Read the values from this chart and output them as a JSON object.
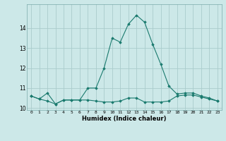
{
  "x": [
    0,
    1,
    2,
    3,
    4,
    5,
    6,
    7,
    8,
    9,
    10,
    11,
    12,
    13,
    14,
    15,
    16,
    17,
    18,
    19,
    20,
    21,
    22,
    23
  ],
  "line1": [
    10.6,
    10.45,
    10.35,
    10.2,
    10.4,
    10.4,
    10.4,
    10.4,
    10.35,
    10.3,
    10.3,
    10.35,
    10.5,
    10.5,
    10.3,
    10.3,
    10.3,
    10.35,
    10.6,
    10.65,
    10.65,
    10.55,
    10.45,
    10.35
  ],
  "line2": [
    10.6,
    10.45,
    10.75,
    10.2,
    10.4,
    10.4,
    10.4,
    11.0,
    11.0,
    12.0,
    13.5,
    13.3,
    14.2,
    14.65,
    14.3,
    13.2,
    12.2,
    11.1,
    10.7,
    10.75,
    10.75,
    10.6,
    10.5,
    10.35
  ],
  "ylim": [
    9.9,
    15.2
  ],
  "yticks": [
    10,
    11,
    12,
    13,
    14
  ],
  "xlabel": "Humidex (Indice chaleur)",
  "bg_color": "#cce8e8",
  "grid_color": "#aacccc",
  "line_color": "#1a7a6e",
  "figsize": [
    3.2,
    2.0
  ],
  "dpi": 100
}
